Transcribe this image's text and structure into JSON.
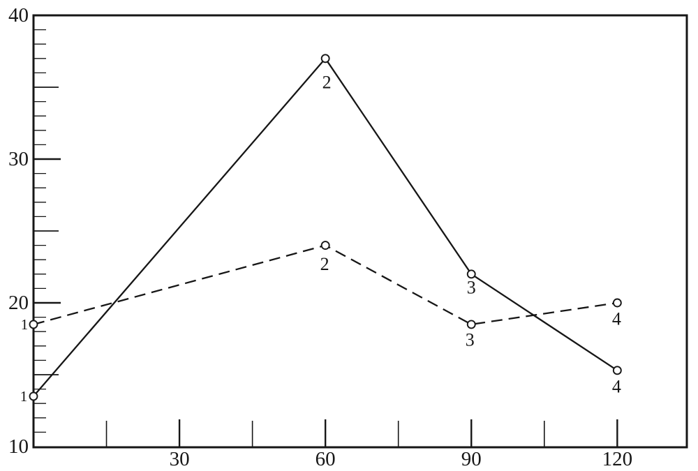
{
  "figure": {
    "background_color": "#ffffff",
    "ink_color": "#161616",
    "marker_fill": "#ffffff"
  },
  "chart_data": {
    "type": "line",
    "title": "",
    "subtitle": "",
    "xlabel": "",
    "ylabel": "",
    "grid": false,
    "legend": "none",
    "frame": "full-box",
    "xlim": [
      0,
      134.3
    ],
    "ylim": [
      10,
      40
    ],
    "x_axis": {
      "labeled_ticks": [
        {
          "value": 30,
          "label": "30"
        },
        {
          "value": 60,
          "label": "60"
        },
        {
          "value": 90,
          "label": "90"
        },
        {
          "value": 120,
          "label": "120"
        }
      ],
      "minor_ticks": [
        15,
        45,
        75,
        105
      ]
    },
    "y_axis": {
      "labeled_ticks": [
        {
          "value": 40,
          "label": "40"
        },
        {
          "value": 30,
          "label": "30"
        },
        {
          "value": 20,
          "label": "20"
        },
        {
          "value": 10,
          "label": "10"
        }
      ],
      "minor_tick_step": 1,
      "medium_tick_step": 5
    },
    "series": [
      {
        "name": "curve-1-solid",
        "line_style": "solid",
        "x": [
          0,
          60,
          90,
          120
        ],
        "y": [
          13.5,
          37,
          22,
          15.3
        ],
        "point_labels": [
          {
            "text": "1",
            "dx": -14,
            "dy": 0,
            "size": 21
          },
          {
            "text": "2",
            "dx": 2,
            "dy": 34,
            "size": 26
          },
          {
            "text": "3",
            "dx": 0,
            "dy": 19,
            "size": 26
          },
          {
            "text": "4",
            "dx": -1,
            "dy": 23,
            "size": 26
          }
        ]
      },
      {
        "name": "curve-2-dashed",
        "line_style": "dashed",
        "x": [
          0,
          60,
          90,
          120
        ],
        "y": [
          18.5,
          24,
          18.5,
          20
        ],
        "point_labels": [
          {
            "text": "1",
            "dx": -13,
            "dy": 0,
            "size": 21
          },
          {
            "text": "2",
            "dx": -1,
            "dy": 27,
            "size": 26
          },
          {
            "text": "3",
            "dx": -2,
            "dy": 22,
            "size": 26
          },
          {
            "text": "4",
            "dx": -1,
            "dy": 23,
            "size": 26
          }
        ]
      }
    ]
  }
}
